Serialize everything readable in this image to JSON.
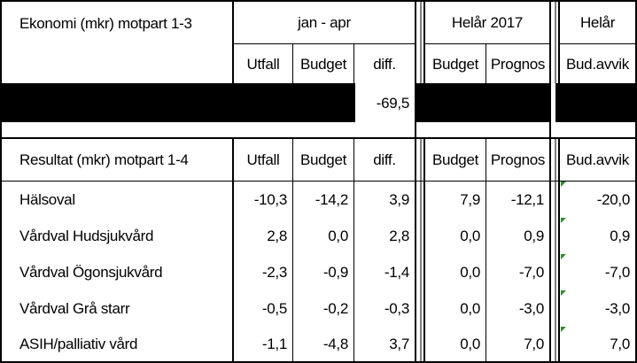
{
  "header": {
    "title": "Ekonomi (mkr) motpart 1-3",
    "group_period": "jan - apr",
    "group_year": "Helår 2017",
    "group_full": "Helår",
    "col_utfall": "Utfall",
    "col_budget": "Budget",
    "col_diff": "diff.",
    "col_year_budget": "Budget",
    "col_year_prognos": "Prognos",
    "col_budavvik": "Bud.avvik"
  },
  "summary_row": {
    "diff": "-69,5"
  },
  "section": {
    "title": "Resultat (mkr) motpart 1-4",
    "col_utfall": "Utfall",
    "col_budget": "Budget",
    "col_diff": "diff.",
    "col_year_budget": "Budget",
    "col_year_prognos": "Prognos",
    "col_budavvik": "Bud.avvik"
  },
  "rows": [
    {
      "name": "Hälsoval",
      "utfall": "-10,3",
      "budget": "-14,2",
      "diff": "3,9",
      "ybudget": "7,9",
      "prognos": "-12,1",
      "budavvik": "-20,0"
    },
    {
      "name": "Vårdval Hudsjukvård",
      "utfall": "2,8",
      "budget": "0,0",
      "diff": "2,8",
      "ybudget": "0,0",
      "prognos": "0,9",
      "budavvik": "0,9"
    },
    {
      "name": "Vårdval Ögonsjukvård",
      "utfall": "-2,3",
      "budget": "-0,9",
      "diff": "-1,4",
      "ybudget": "0,0",
      "prognos": "-7,0",
      "budavvik": "-7,0"
    },
    {
      "name": "Vårdval Grå starr",
      "utfall": "-0,5",
      "budget": "-0,2",
      "diff": "-0,3",
      "ybudget": "0,0",
      "prognos": "-3,0",
      "budavvik": "-3,0"
    },
    {
      "name": "ASIH/palliativ vård",
      "utfall": "-1,1",
      "budget": "-4,8",
      "diff": "3,7",
      "ybudget": "0,0",
      "prognos": "7,0",
      "budavvik": "7,0"
    }
  ],
  "colors": {
    "flag": "#2e8b2e",
    "fill": "#000000"
  }
}
